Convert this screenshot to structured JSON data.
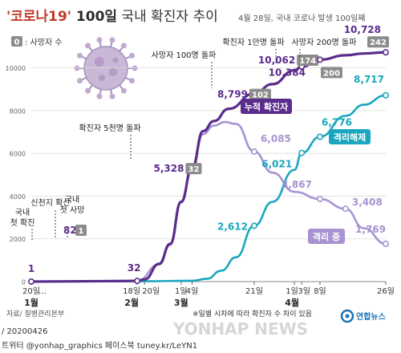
{
  "header": {
    "title_quote": "'코로나19'",
    "title_main": " 100일",
    "title_sub": " 국내 확진자 추이",
    "date_note": "4월 28일, 국내 코로나 발생 100일째"
  },
  "legend": {
    "box": "0",
    "label": ": 사망자 수"
  },
  "footer": {
    "source": "자료/ 질병관리본부",
    "note": "※일별 시차에 따라 확진자 수 차이 있음",
    "code": "/ 20200426",
    "sns": "트위터 @yonhap_graphics  페이스북 tuney.kr/LeYN1",
    "agency": "연합뉴스",
    "watermark": "YONHAP NEWS"
  },
  "colors": {
    "cumulative": "#5b2c8c",
    "isolation": "#a793d1",
    "released": "#1aa6bf",
    "death_badge": "#8c8c8c",
    "title_accent": "#c0392b"
  },
  "chart_data": {
    "type": "line",
    "ylim": [
      0,
      11000
    ],
    "yticks": [
      0,
      2000,
      4000,
      6000,
      8000,
      10000
    ],
    "x_start": "2020-01-20",
    "x_end": "2020-04-26",
    "xticks": [
      {
        "date": "2020-01-20",
        "label": "20일",
        "month": "1월"
      },
      {
        "date": "2020-02-18",
        "label": "18일",
        "month": "2월"
      },
      {
        "date": "2020-02-20",
        "label": "20일",
        "month": ""
      },
      {
        "date": "2020-03-01",
        "label": "1일",
        "month": "3월"
      },
      {
        "date": "2020-03-04",
        "label": "4일",
        "month": ""
      },
      {
        "date": "2020-03-21",
        "label": "21일",
        "month": ""
      },
      {
        "date": "2020-04-01",
        "label": "1일",
        "month": "4월"
      },
      {
        "date": "2020-04-03",
        "label": "3일",
        "month": ""
      },
      {
        "date": "2020-04-08",
        "label": "8일",
        "month": ""
      },
      {
        "date": "2020-04-26",
        "label": "26일",
        "month": ""
      }
    ],
    "series": [
      {
        "name": "누적 확진자",
        "key": "cumulative",
        "points": [
          [
            "2020-01-20",
            1
          ],
          [
            "2020-02-18",
            32
          ],
          [
            "2020-02-20",
            104
          ],
          [
            "2020-02-24",
            833
          ],
          [
            "2020-02-27",
            1766
          ],
          [
            "2020-03-01",
            3736
          ],
          [
            "2020-03-04",
            5328
          ],
          [
            "2020-03-07",
            7041
          ],
          [
            "2020-03-10",
            7513
          ],
          [
            "2020-03-14",
            8086
          ],
          [
            "2020-03-21",
            8799
          ],
          [
            "2020-03-26",
            9241
          ],
          [
            "2020-04-01",
            9887
          ],
          [
            "2020-04-03",
            10062
          ],
          [
            "2020-04-08",
            10384
          ],
          [
            "2020-04-15",
            10591
          ],
          [
            "2020-04-20",
            10674
          ],
          [
            "2020-04-26",
            10728
          ]
        ]
      },
      {
        "name": "격리 중",
        "key": "isolation",
        "points": [
          [
            "2020-02-18",
            31
          ],
          [
            "2020-02-24",
            800
          ],
          [
            "2020-02-27",
            1720
          ],
          [
            "2020-03-01",
            3700
          ],
          [
            "2020-03-04",
            5255
          ],
          [
            "2020-03-07",
            6900
          ],
          [
            "2020-03-10",
            7300
          ],
          [
            "2020-03-13",
            7470
          ],
          [
            "2020-03-16",
            7380
          ],
          [
            "2020-03-21",
            6085
          ],
          [
            "2020-03-26",
            5100
          ],
          [
            "2020-04-01",
            4200
          ],
          [
            "2020-04-08",
            3867
          ],
          [
            "2020-04-15",
            3408
          ],
          [
            "2020-04-20",
            2500
          ],
          [
            "2020-04-26",
            1769
          ]
        ]
      },
      {
        "name": "격리해제",
        "key": "released",
        "points": [
          [
            "2020-01-20",
            0
          ],
          [
            "2020-02-20",
            16
          ],
          [
            "2020-03-04",
            41
          ],
          [
            "2020-03-08",
            130
          ],
          [
            "2020-03-12",
            510
          ],
          [
            "2020-03-16",
            1137
          ],
          [
            "2020-03-21",
            2612
          ],
          [
            "2020-03-26",
            3731
          ],
          [
            "2020-04-01",
            5228
          ],
          [
            "2020-04-03",
            6021
          ],
          [
            "2020-04-08",
            6776
          ],
          [
            "2020-04-15",
            7757
          ],
          [
            "2020-04-20",
            8277
          ],
          [
            "2020-04-26",
            8717
          ]
        ]
      }
    ],
    "markers": [
      {
        "series": "cumulative",
        "date": "2020-01-20",
        "label": "1"
      },
      {
        "series": "cumulative",
        "date": "2020-02-18",
        "label": "32"
      },
      {
        "series": "cumulative",
        "date": "2020-03-04",
        "label": "5,328",
        "death": "32"
      },
      {
        "series": "cumulative",
        "date": "2020-03-21",
        "label": "8,799",
        "death": "102"
      },
      {
        "series": "cumulative",
        "date": "2020-04-03",
        "label": "10,062",
        "death": "174"
      },
      {
        "series": "cumulative",
        "date": "2020-04-08",
        "label": "10,384",
        "death": "200"
      },
      {
        "series": "cumulative",
        "date": "2020-04-26",
        "label": "10,728",
        "death": "242"
      },
      {
        "series": "isolation",
        "date": "2020-03-21",
        "label": "6,085"
      },
      {
        "series": "isolation",
        "date": "2020-04-08",
        "label": "3,867"
      },
      {
        "series": "isolation",
        "date": "2020-04-15",
        "label": "3,408"
      },
      {
        "series": "isolation",
        "date": "2020-04-26",
        "label": "1,769"
      },
      {
        "series": "released",
        "date": "2020-03-21",
        "label": "2,612"
      },
      {
        "series": "released",
        "date": "2020-04-03",
        "label": "6,021"
      },
      {
        "series": "released",
        "date": "2020-04-08",
        "label": "6,776"
      },
      {
        "series": "released",
        "date": "2020-04-26",
        "label": "8,717"
      }
    ],
    "first_death": {
      "count": "82",
      "death": "1"
    },
    "annotations": [
      "국내\n첫 확진",
      "신천지 확산",
      "국내\n첫 사망",
      "확진자 5천명 돌파",
      "사망자 100명 돌파",
      "확진자 1만명 돌파",
      "사망자 200명 돌파"
    ],
    "series_labels": [
      "누적 확진자",
      "격리해제",
      "격리 중"
    ]
  }
}
